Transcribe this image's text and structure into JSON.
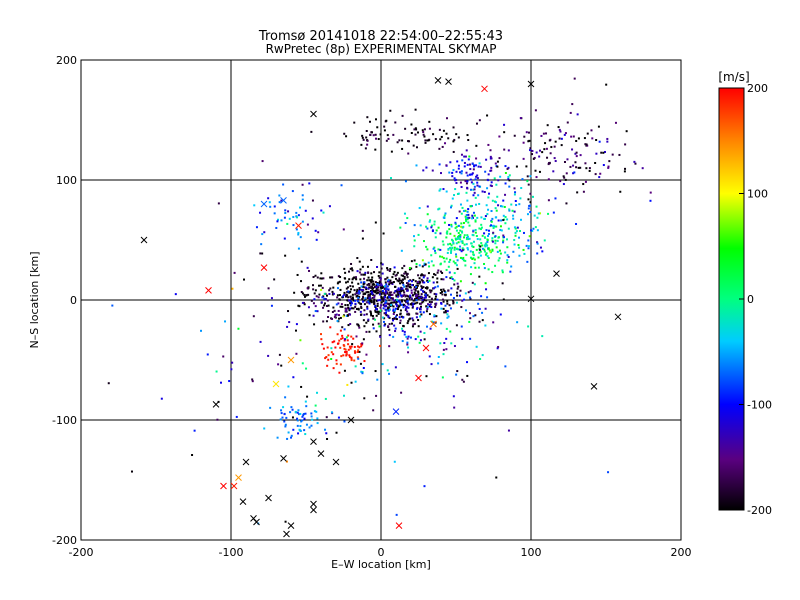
{
  "chart_data": {
    "type": "scatter",
    "title": "Tromsø 20141018 22:54:00–22:55:43",
    "subtitle": "RwPretec (8p) EXPERIMENTAL SKYMAP",
    "xlabel": "E–W location [km]",
    "ylabel": "N–S location [km]",
    "xlim": [
      -200,
      200
    ],
    "ylim": [
      -200,
      200
    ],
    "xticks": [
      -200,
      -100,
      0,
      100,
      200
    ],
    "yticks": [
      -200,
      -100,
      0,
      100,
      200
    ],
    "grid": true,
    "colorbar": {
      "label": "[m/s]",
      "range": [
        -200,
        200
      ],
      "ticks": [
        200,
        100,
        0,
        -100,
        -200
      ],
      "colormap": "rainbow (black-purple-blue-cyan-green-yellow-red)"
    },
    "clusters": [
      {
        "cx": 0,
        "cy": 5,
        "sx": 25,
        "sy": 12,
        "n": 700,
        "velocity": -200,
        "vel_spread": 20
      },
      {
        "cx": 10,
        "cy": 0,
        "sx": 22,
        "sy": 10,
        "n": 220,
        "velocity": -110,
        "vel_spread": 25
      },
      {
        "cx": 55,
        "cy": 45,
        "sx": 14,
        "sy": 12,
        "n": 180,
        "velocity": 10,
        "vel_spread": 25
      },
      {
        "cx": 70,
        "cy": 65,
        "sx": 22,
        "sy": 22,
        "n": 280,
        "velocity": -40,
        "vel_spread": 45
      },
      {
        "cx": 60,
        "cy": 105,
        "sx": 10,
        "sy": 7,
        "n": 80,
        "velocity": -120,
        "vel_spread": 25
      },
      {
        "cx": 120,
        "cy": 120,
        "sx": 25,
        "sy": 18,
        "n": 160,
        "velocity": -170,
        "vel_spread": 35
      },
      {
        "cx": 15,
        "cy": 138,
        "sx": 20,
        "sy": 8,
        "n": 90,
        "velocity": -190,
        "vel_spread": 20
      },
      {
        "cx": -25,
        "cy": -40,
        "sx": 8,
        "sy": 7,
        "n": 70,
        "velocity": 190,
        "vel_spread": 10
      },
      {
        "cx": -55,
        "cy": -100,
        "sx": 8,
        "sy": 8,
        "n": 60,
        "velocity": -70,
        "vel_spread": 20
      },
      {
        "cx": -60,
        "cy": 70,
        "sx": 15,
        "sy": 10,
        "n": 50,
        "velocity": -70,
        "vel_spread": 30
      },
      {
        "cx": 30,
        "cy": -30,
        "sx": 30,
        "sy": 20,
        "n": 120,
        "velocity": -90,
        "vel_spread": 80
      },
      {
        "cx": -40,
        "cy": -40,
        "sx": 60,
        "sy": 60,
        "n": 140,
        "velocity": -120,
        "vel_spread": 90
      }
    ],
    "markers": [
      {
        "x": -158,
        "y": 50,
        "v": -200
      },
      {
        "x": -115,
        "y": 8,
        "v": 200
      },
      {
        "x": -78,
        "y": 27,
        "v": 200
      },
      {
        "x": -55,
        "y": 62,
        "v": 190
      },
      {
        "x": -110,
        "y": -87,
        "v": -200
      },
      {
        "x": -95,
        "y": -148,
        "v": 140
      },
      {
        "x": -98,
        "y": -155,
        "v": 190
      },
      {
        "x": -105,
        "y": -155,
        "v": 200
      },
      {
        "x": -85,
        "y": -182,
        "v": -200
      },
      {
        "x": -92,
        "y": -168,
        "v": -200
      },
      {
        "x": -75,
        "y": -165,
        "v": -200
      },
      {
        "x": -83,
        "y": -185,
        "v": -200
      },
      {
        "x": -60,
        "y": -188,
        "v": -200
      },
      {
        "x": -63,
        "y": -195,
        "v": -200
      },
      {
        "x": -45,
        "y": -170,
        "v": -200
      },
      {
        "x": -45,
        "y": -175,
        "v": -200
      },
      {
        "x": 12,
        "y": -188,
        "v": 200
      },
      {
        "x": 10,
        "y": -93,
        "v": -90
      },
      {
        "x": 142,
        "y": -72,
        "v": -200
      },
      {
        "x": 158,
        "y": -14,
        "v": -200
      },
      {
        "x": 100,
        "y": 1,
        "v": -200
      },
      {
        "x": 117,
        "y": 22,
        "v": -200
      },
      {
        "x": 69,
        "y": 176,
        "v": 200
      },
      {
        "x": 100,
        "y": 180,
        "v": -200
      },
      {
        "x": 45,
        "y": 182,
        "v": -200
      },
      {
        "x": -45,
        "y": 155,
        "v": -200
      },
      {
        "x": 38,
        "y": 183,
        "v": -200
      },
      {
        "x": -78,
        "y": 80,
        "v": -70
      },
      {
        "x": -65,
        "y": 83,
        "v": -70
      },
      {
        "x": -60,
        "y": -50,
        "v": 140
      },
      {
        "x": -70,
        "y": -70,
        "v": 110
      },
      {
        "x": -90,
        "y": -135,
        "v": -200
      },
      {
        "x": -40,
        "y": -128,
        "v": -200
      },
      {
        "x": -30,
        "y": -135,
        "v": -200
      },
      {
        "x": -45,
        "y": -118,
        "v": -200
      },
      {
        "x": -65,
        "y": -132,
        "v": -200
      },
      {
        "x": -20,
        "y": -100,
        "v": -200
      },
      {
        "x": 30,
        "y": -40,
        "v": 200
      },
      {
        "x": 25,
        "y": -65,
        "v": 200
      },
      {
        "x": 35,
        "y": -20,
        "v": 160
      }
    ]
  }
}
